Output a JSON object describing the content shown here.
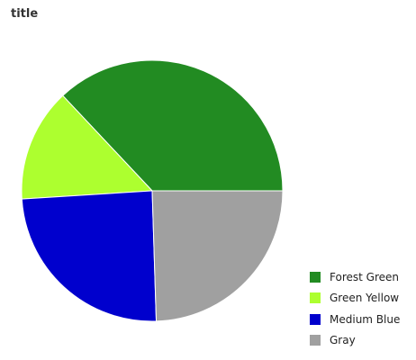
{
  "chart_data": {
    "type": "pie",
    "title": "title",
    "slices": [
      {
        "label": "Forest Green",
        "value": 37,
        "color": "#228b22"
      },
      {
        "label": "Green Yellow",
        "value": 14,
        "color": "#adff2f"
      },
      {
        "label": "Medium Blue",
        "value": 24.5,
        "color": "#0000cd"
      },
      {
        "label": "Gray",
        "value": 24.5,
        "color": "#a0a0a0"
      }
    ],
    "legend_position": "right"
  }
}
